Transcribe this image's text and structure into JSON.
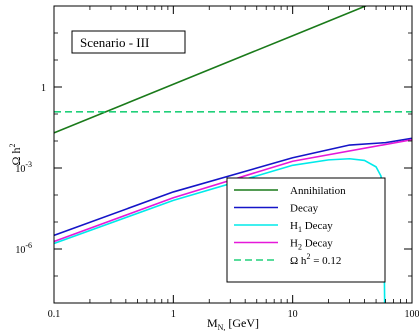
{
  "chart_data": {
    "type": "line",
    "scenario_label": "Scenario - III",
    "xlabel": "M",
    "xlabel_sub": "N,",
    "xlabel_unit": " [GeV]",
    "ylabel": "Ω h",
    "ylabel_sup": "2",
    "x_scale": "log",
    "y_scale": "log",
    "xlim": [
      0.1,
      100
    ],
    "ylim": [
      1e-08,
      1000
    ],
    "x_ticks": [
      {
        "value": 0.1,
        "label": "0.1"
      },
      {
        "value": 1,
        "label": "1"
      },
      {
        "value": 10,
        "label": "10"
      },
      {
        "value": 100,
        "label": "100"
      }
    ],
    "y_ticks": [
      {
        "value": 1e-06,
        "label": "10",
        "sup": "-6"
      },
      {
        "value": 0.001,
        "label": "10",
        "sup": "-3"
      },
      {
        "value": 1,
        "label": "1",
        "sup": ""
      }
    ],
    "grid": false,
    "legend_placement": "bottom-right",
    "series": [
      {
        "name": "Annihilation",
        "legend_label": "Annihilation",
        "color": "#1a7a1a",
        "dash": "solid",
        "points": [
          [
            0.1,
            0.02
          ],
          [
            1,
            1.26
          ],
          [
            10,
            79.4
          ],
          [
            100,
            5000
          ]
        ]
      },
      {
        "name": "Decay",
        "legend_label": "Decay",
        "color": "#1515c8",
        "dash": "solid",
        "points": [
          [
            0.1,
            3.2e-06
          ],
          [
            1,
            0.00013
          ],
          [
            10,
            0.0024
          ],
          [
            30,
            0.0071
          ],
          [
            60,
            0.0087
          ],
          [
            100,
            0.0126
          ]
        ]
      },
      {
        "name": "H1 Decay",
        "legend_label": "H",
        "legend_sub": "1",
        "legend_tail": " Decay",
        "color": "#00eaea",
        "dash": "solid",
        "points": [
          [
            0.1,
            1.6e-06
          ],
          [
            1,
            6.3e-05
          ],
          [
            10,
            0.00126
          ],
          [
            20,
            0.002
          ],
          [
            30,
            0.0022
          ],
          [
            40,
            0.0019
          ],
          [
            50,
            0.0011
          ],
          [
            55,
            0.0005
          ],
          [
            58,
            1e-05
          ],
          [
            59,
            1e-08
          ]
        ]
      },
      {
        "name": "H2 Decay",
        "legend_label": "H",
        "legend_sub": "2",
        "legend_tail": " Decay",
        "color": "#e619d9",
        "dash": "solid",
        "points": [
          [
            0.1,
            1.9e-06
          ],
          [
            1,
            7.9e-05
          ],
          [
            10,
            0.00178
          ],
          [
            100,
            0.0112
          ]
        ]
      },
      {
        "name": "Omega h2 = 0.12",
        "legend_label": "Ω h",
        "legend_sup": "2",
        "legend_tail": " = 0.12",
        "color": "#20d07a",
        "dash": "dashed",
        "points": [
          [
            0.1,
            0.12
          ],
          [
            100,
            0.12
          ]
        ]
      }
    ]
  }
}
